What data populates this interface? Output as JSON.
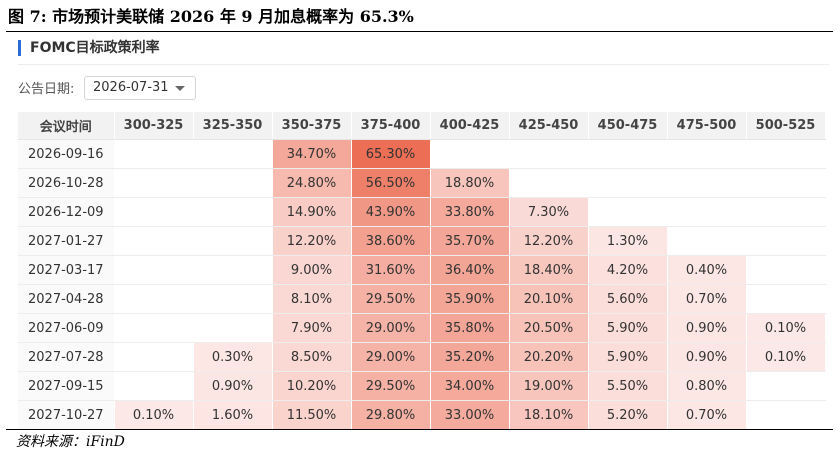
{
  "figure": {
    "title": "图 7:  市场预计美联储 2026 年 9 月加息概率为 65.3%",
    "source": "资料来源：iFinD"
  },
  "panel": {
    "title": "FOMC目标政策利率",
    "date_label": "公告日期:",
    "date_value": "2026-07-31"
  },
  "colors": {
    "accent": "#2a6bd8",
    "heat_low": "#fce8e6",
    "heat_high": "#ec6f55"
  },
  "chart_data": {
    "type": "table",
    "title": "FOMC目标政策利率",
    "row_header": "会议时间",
    "columns": [
      "300-325",
      "325-350",
      "350-375",
      "375-400",
      "400-425",
      "425-450",
      "450-475",
      "475-500",
      "500-525"
    ],
    "rows": [
      {
        "date": "2026-09-16",
        "values": [
          "",
          "",
          "34.70%",
          "65.30%",
          "",
          "",
          "",
          "",
          ""
        ]
      },
      {
        "date": "2026-10-28",
        "values": [
          "",
          "",
          "24.80%",
          "56.50%",
          "18.80%",
          "",
          "",
          "",
          ""
        ]
      },
      {
        "date": "2026-12-09",
        "values": [
          "",
          "",
          "14.90%",
          "43.90%",
          "33.80%",
          "7.30%",
          "",
          "",
          ""
        ]
      },
      {
        "date": "2027-01-27",
        "values": [
          "",
          "",
          "12.20%",
          "38.60%",
          "35.70%",
          "12.20%",
          "1.30%",
          "",
          ""
        ]
      },
      {
        "date": "2027-03-17",
        "values": [
          "",
          "",
          "9.00%",
          "31.60%",
          "36.40%",
          "18.40%",
          "4.20%",
          "0.40%",
          ""
        ]
      },
      {
        "date": "2027-04-28",
        "values": [
          "",
          "",
          "8.10%",
          "29.50%",
          "35.90%",
          "20.10%",
          "5.60%",
          "0.70%",
          ""
        ]
      },
      {
        "date": "2027-06-09",
        "values": [
          "",
          "",
          "7.90%",
          "29.00%",
          "35.80%",
          "20.50%",
          "5.90%",
          "0.90%",
          "0.10%"
        ]
      },
      {
        "date": "2027-07-28",
        "values": [
          "",
          "0.30%",
          "8.50%",
          "29.00%",
          "35.20%",
          "20.20%",
          "5.90%",
          "0.90%",
          "0.10%"
        ]
      },
      {
        "date": "2027-09-15",
        "values": [
          "",
          "0.90%",
          "10.20%",
          "29.50%",
          "34.00%",
          "19.00%",
          "5.50%",
          "0.80%",
          ""
        ]
      },
      {
        "date": "2027-10-27",
        "values": [
          "0.10%",
          "1.60%",
          "11.50%",
          "29.80%",
          "33.00%",
          "18.10%",
          "5.20%",
          "0.70%",
          ""
        ]
      }
    ]
  }
}
